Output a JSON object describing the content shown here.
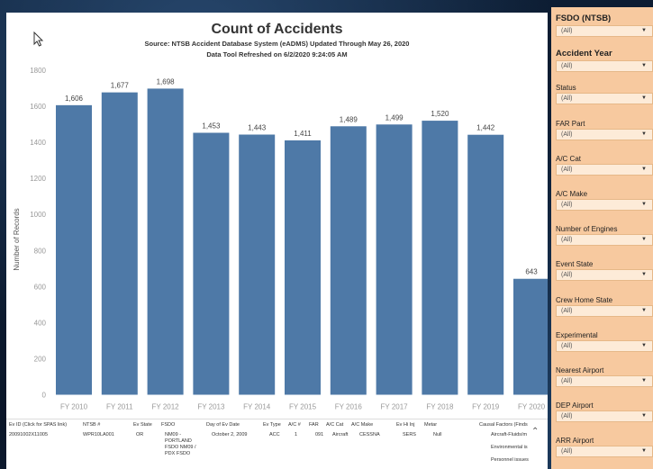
{
  "title": "Count of Accidents",
  "subtitle": "Source: NTSB Accident Database System (eADMS) Updated Through May 26, 2020",
  "refreshed": "Data Tool Refreshed on 6/2/2020 9:24:05 AM",
  "colors": {
    "bar": "#4e79a7",
    "filter_panel": "#f7c99f"
  },
  "chart_data": {
    "type": "bar",
    "categories": [
      "FY 2010",
      "FY 2011",
      "FY 2012",
      "FY 2013",
      "FY 2014",
      "FY 2015",
      "FY 2016",
      "FY 2017",
      "FY 2018",
      "FY 2019",
      "FY 2020"
    ],
    "values": [
      1606,
      1677,
      1698,
      1453,
      1443,
      1411,
      1489,
      1499,
      1520,
      1442,
      643
    ],
    "value_labels": [
      "1,606",
      "1,677",
      "1,698",
      "1,453",
      "1,443",
      "1,411",
      "1,489",
      "1,499",
      "1,520",
      "1,442",
      "643"
    ],
    "ylabel": "Number of Records",
    "xlabel": "",
    "ylim": [
      0,
      1800
    ],
    "yticks": [
      0,
      200,
      400,
      600,
      800,
      1000,
      1200,
      1400,
      1600,
      1800
    ],
    "grid": false
  },
  "table": {
    "headers": [
      "Ev ID (Click for SPAS link)",
      "NTSB #",
      "Ev State",
      "FSDO",
      "Day of Ev Date",
      "Ev Type",
      "A/C #",
      "FAR",
      "A/C Cat",
      "A/C Make",
      "Ev Hi Inj",
      "Metar",
      "Causal Factors (Finds"
    ],
    "row": {
      "ev_id": "20091002X11005",
      "ntsb": "WPR10LA001",
      "state": "OR",
      "fsdo": "NM09 - PORTLAND FSDO NM09 / PDX FSDO",
      "date": "October 2, 2009",
      "ev_type": "ACC",
      "ac_num": "1",
      "far": "091",
      "ac_cat": "Aircraft",
      "ac_make": "CESSNA",
      "hi_inj": "SERS",
      "metar": "Null",
      "causal": [
        "Aircraft-Fluids/m",
        "Environmental is",
        "Personnel issues"
      ]
    }
  },
  "filters": [
    {
      "label": "FSDO (NTSB)",
      "value": "(All)",
      "emphasis": true
    },
    {
      "label": "Accident Year",
      "value": "(All)",
      "emphasis": true
    },
    {
      "label": "Status",
      "value": "(All)"
    },
    {
      "label": "FAR Part",
      "value": "(All)"
    },
    {
      "label": "A/C Cat",
      "value": "(All)"
    },
    {
      "label": "A/C Make",
      "value": "(All)"
    },
    {
      "label": "Number of Engines",
      "value": "(All)"
    },
    {
      "label": "Event State",
      "value": "(All)"
    },
    {
      "label": "Crew Home State",
      "value": "(All)"
    },
    {
      "label": "Experimental",
      "value": "(All)"
    },
    {
      "label": "Nearest Airport",
      "value": "(All)"
    },
    {
      "label": "DEP Airport",
      "value": "(All)"
    },
    {
      "label": "ARR Airport",
      "value": "(All)"
    }
  ]
}
